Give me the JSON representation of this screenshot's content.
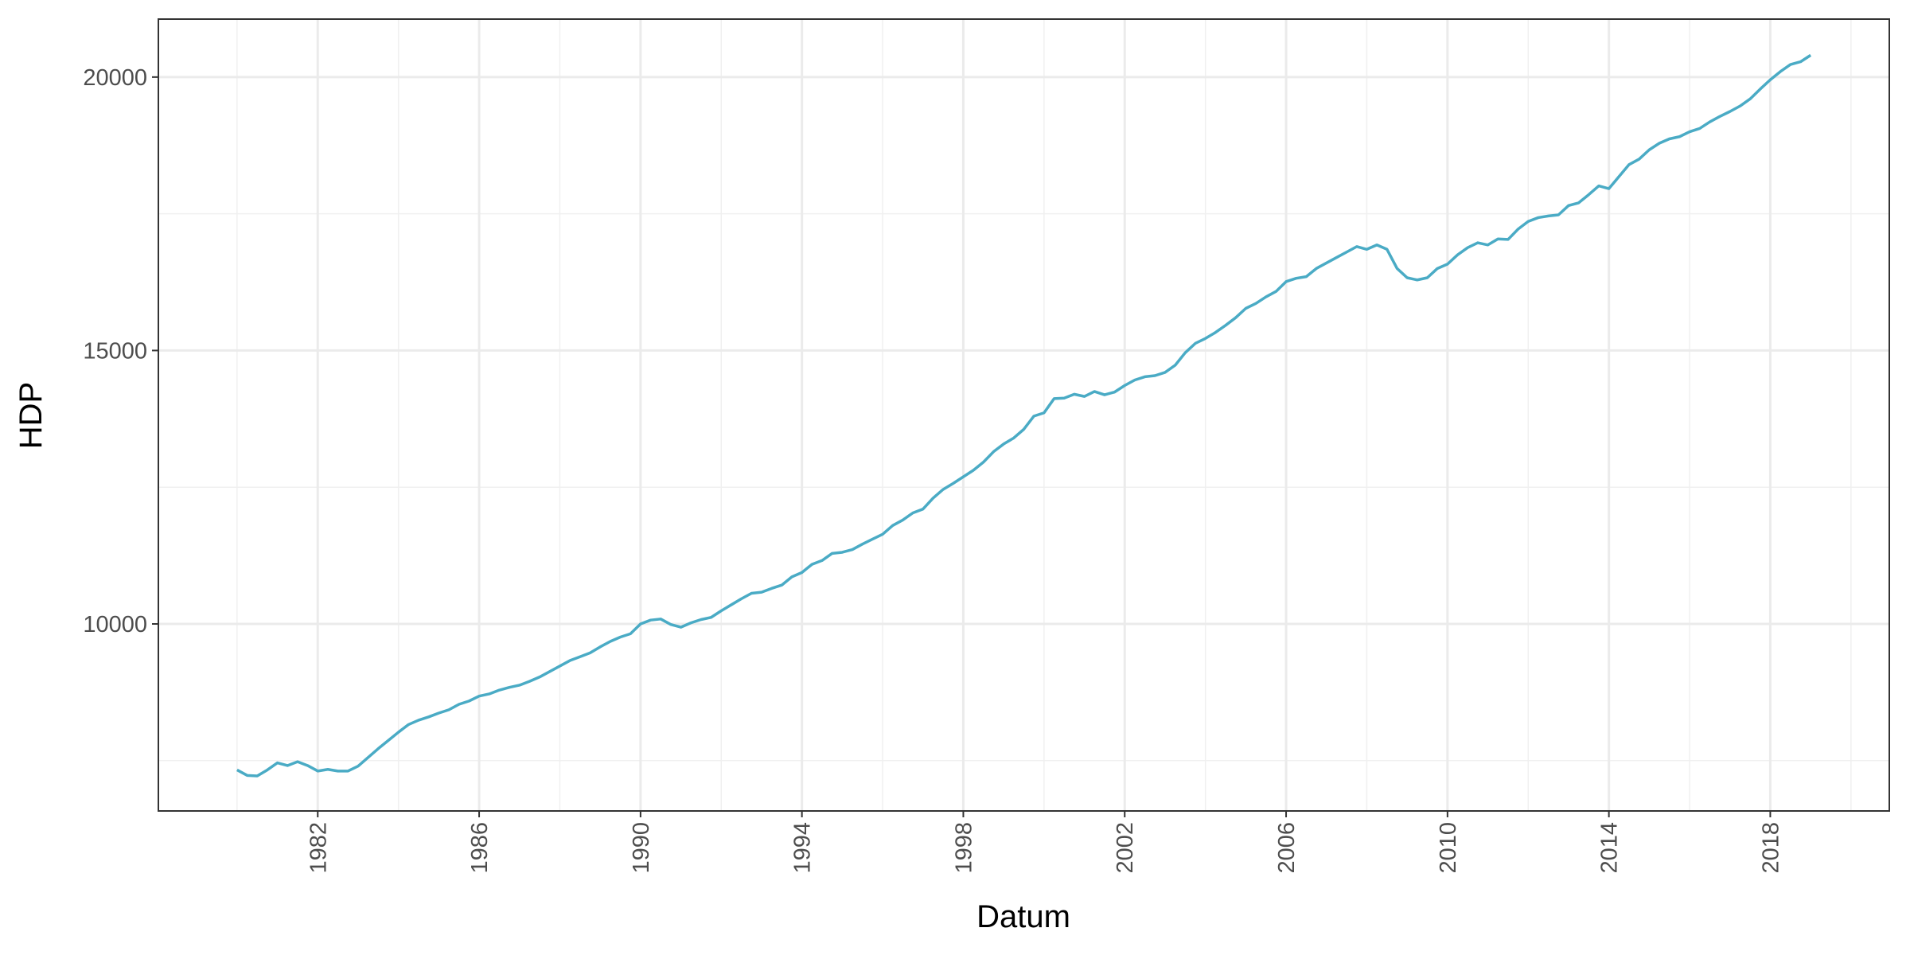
{
  "chart_data": {
    "type": "line",
    "xlabel": "Datum",
    "ylabel": "HDP",
    "x": [
      1980,
      1980.25,
      1980.5,
      1980.75,
      1981,
      1981.25,
      1981.5,
      1981.75,
      1982,
      1982.25,
      1982.5,
      1982.75,
      1983,
      1983.25,
      1983.5,
      1983.75,
      1984,
      1984.25,
      1984.5,
      1984.75,
      1985,
      1985.25,
      1985.5,
      1985.75,
      1986,
      1986.25,
      1986.5,
      1986.75,
      1987,
      1987.25,
      1987.5,
      1987.75,
      1988,
      1988.25,
      1988.5,
      1988.75,
      1989,
      1989.25,
      1989.5,
      1989.75,
      1990,
      1990.25,
      1990.5,
      1990.75,
      1991,
      1991.25,
      1991.5,
      1991.75,
      1992,
      1992.25,
      1992.5,
      1992.75,
      1993,
      1993.25,
      1993.5,
      1993.75,
      1994,
      1994.25,
      1994.5,
      1994.75,
      1995,
      1995.25,
      1995.5,
      1995.75,
      1996,
      1996.25,
      1996.5,
      1996.75,
      1997,
      1997.25,
      1997.5,
      1997.75,
      1998,
      1998.25,
      1998.5,
      1998.75,
      1999,
      1999.25,
      1999.5,
      1999.75,
      2000,
      2000.25,
      2000.5,
      2000.75,
      2001,
      2001.25,
      2001.5,
      2001.75,
      2002,
      2002.25,
      2002.5,
      2002.75,
      2003,
      2003.25,
      2003.5,
      2003.75,
      2004,
      2004.25,
      2004.5,
      2004.75,
      2005,
      2005.25,
      2005.5,
      2005.75,
      2006,
      2006.25,
      2006.5,
      2006.75,
      2007,
      2007.25,
      2007.5,
      2007.75,
      2008,
      2008.25,
      2008.5,
      2008.75,
      2009,
      2009.25,
      2009.5,
      2009.75,
      2010,
      2010.25,
      2010.5,
      2010.75,
      2011,
      2011.25,
      2011.5,
      2011.75,
      2012,
      2012.25,
      2012.5,
      2012.75,
      2013,
      2013.25,
      2013.5,
      2013.75,
      2014,
      2014.25,
      2014.5,
      2014.75,
      2015,
      2015.25,
      2015.5,
      2015.75,
      2016,
      2016.25,
      2016.5,
      2016.75,
      2017,
      2017.25,
      2017.5,
      2017.75,
      2018,
      2018.25,
      2018.5,
      2018.75,
      2019
    ],
    "series": [
      {
        "color": "#4aabc5",
        "values": [
          7330,
          7230,
          7220,
          7330,
          7460,
          7410,
          7480,
          7410,
          7310,
          7340,
          7310,
          7310,
          7400,
          7560,
          7720,
          7870,
          8020,
          8160,
          8240,
          8300,
          8370,
          8430,
          8530,
          8590,
          8680,
          8720,
          8790,
          8840,
          8880,
          8950,
          9030,
          9130,
          9230,
          9330,
          9400,
          9470,
          9580,
          9680,
          9760,
          9820,
          10000,
          10070,
          10090,
          9990,
          9940,
          10020,
          10080,
          10120,
          10240,
          10350,
          10460,
          10560,
          10580,
          10650,
          10710,
          10860,
          10940,
          11090,
          11160,
          11290,
          11310,
          11360,
          11460,
          11550,
          11640,
          11800,
          11900,
          12030,
          12100,
          12300,
          12460,
          12570,
          12690,
          12810,
          12960,
          13150,
          13290,
          13400,
          13560,
          13800,
          13860,
          14120,
          14130,
          14200,
          14160,
          14250,
          14190,
          14240,
          14360,
          14460,
          14520,
          14540,
          14600,
          14730,
          14960,
          15130,
          15220,
          15330,
          15460,
          15600,
          15770,
          15860,
          15980,
          16080,
          16260,
          16320,
          16350,
          16500,
          16600,
          16700,
          16800,
          16900,
          16850,
          16930,
          16850,
          16500,
          16330,
          16290,
          16330,
          16500,
          16580,
          16750,
          16880,
          16970,
          16930,
          17040,
          17030,
          17220,
          17360,
          17430,
          17460,
          17480,
          17650,
          17700,
          17850,
          18010,
          17960,
          18180,
          18400,
          18500,
          18670,
          18790,
          18870,
          18910,
          19000,
          19060,
          19180,
          19280,
          19370,
          19470,
          19600,
          19780,
          19950,
          20100,
          20230,
          20280,
          20400
        ]
      }
    ],
    "xlim": [
      1978.05,
      2020.95
    ],
    "xticks": [
      1982,
      1986,
      1990,
      1994,
      1998,
      2002,
      2006,
      2010,
      2014,
      2018
    ],
    "x_minor_ticks": [
      1980,
      1984,
      1988,
      1992,
      1996,
      2000,
      2004,
      2008,
      2012,
      2016,
      2020
    ],
    "ylim": [
      6580,
      21060
    ],
    "yticks": [
      10000,
      15000,
      20000
    ],
    "y_minor_ticks": [
      7500,
      12500,
      17500
    ],
    "grid": true
  }
}
